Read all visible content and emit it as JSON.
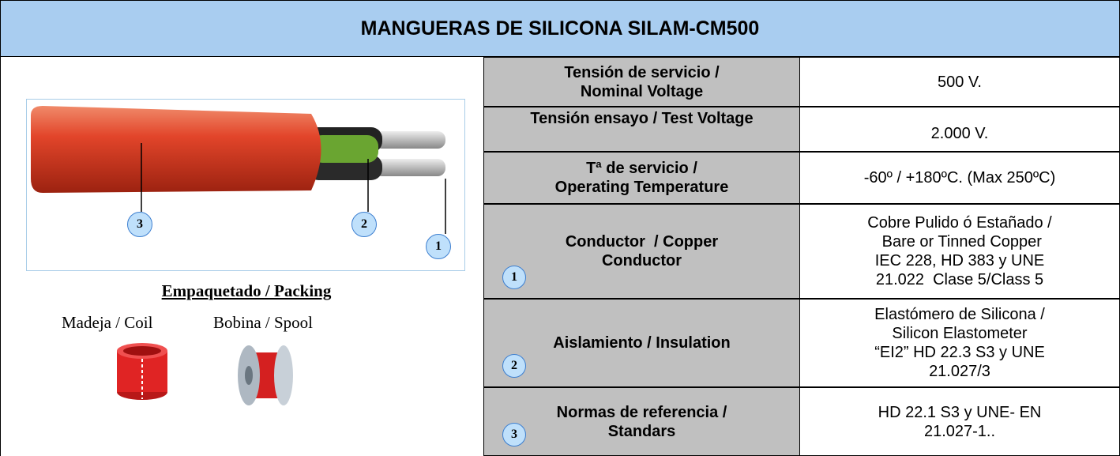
{
  "header": {
    "title": "MANGUERAS DE SILICONA  SILAM-CM500"
  },
  "image": {
    "callouts": [
      "3",
      "2",
      "1"
    ]
  },
  "packing": {
    "title": "Empaquetado / Packing",
    "items": [
      "Madeja / Coil",
      "Bobina / Spool"
    ]
  },
  "table": {
    "rows": [
      {
        "label": [
          "Tensión de servicio /",
          "Nominal Voltage"
        ],
        "value": [
          "500 V."
        ]
      },
      {
        "label": [
          "Tensión ensayo / Test Voltage"
        ],
        "value": [
          "2.000 V."
        ]
      },
      {
        "label": [
          "Tª de servicio /",
          "Operating Temperature"
        ],
        "value": [
          "-60º / +180ºC. (Max 250ºC)"
        ]
      },
      {
        "label": [
          "Conductor  / Copper",
          "Conductor"
        ],
        "value": [
          "Cobre Pulido ó Estañado /",
          " Bare or Tinned Copper",
          "IEC 228, HD 383 y UNE",
          "21.022  Clase 5/Class 5"
        ],
        "marker": "1"
      },
      {
        "label": [
          "Aislamiento / Insulation"
        ],
        "value": [
          "Elastómero de Silicona /",
          "Silicon Elastometer",
          "“EI2” HD 22.3 S3 y UNE",
          "21.027/3"
        ],
        "marker": "2"
      },
      {
        "label": [
          "Normas de referencia /",
          "Standars"
        ],
        "value": [
          "HD 22.1 S3 y UNE- EN",
          "21.027-1.."
        ],
        "marker": "3"
      }
    ]
  }
}
